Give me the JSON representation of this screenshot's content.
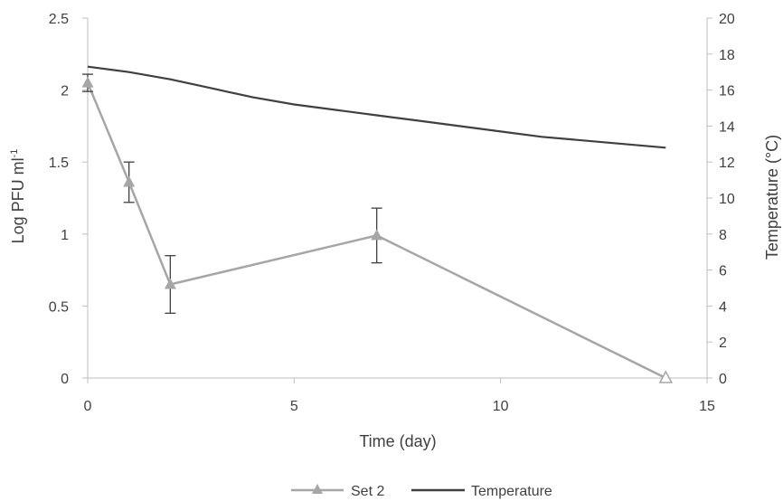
{
  "chart_data": {
    "type": "line",
    "title": "",
    "xlabel": "Time (day)",
    "ylabel": "Log PFU ml",
    "ylabel_superscript": "-1",
    "y2label": "Temperature (°C)",
    "xlim": [
      0,
      15
    ],
    "ylim": [
      0,
      2.5
    ],
    "y2lim": [
      0,
      20
    ],
    "x_ticks": [
      0,
      5,
      10,
      15
    ],
    "y_ticks": [
      0,
      0.5,
      1,
      1.5,
      2,
      2.5
    ],
    "y_tick_labels": [
      "0",
      "0.5",
      "1",
      "1.5",
      "2",
      "2.5"
    ],
    "y2_ticks": [
      0,
      2,
      4,
      6,
      8,
      10,
      12,
      14,
      16,
      18,
      20
    ],
    "grid": false,
    "legend_position": "bottom",
    "series": [
      {
        "name": "Set 2",
        "axis": "left",
        "color": "#a6a6a6",
        "marker": "triangle",
        "x": [
          0,
          1,
          2,
          7,
          14
        ],
        "y": [
          2.05,
          1.36,
          0.65,
          0.99,
          0
        ],
        "error": [
          0.06,
          0.14,
          0.2,
          0.19,
          null
        ],
        "open_marker_index": 4
      },
      {
        "name": "Temperature",
        "axis": "right",
        "color": "#404040",
        "marker": "none",
        "x": [
          0,
          1,
          2,
          3,
          4,
          5,
          6,
          7,
          8,
          9,
          10,
          11,
          12,
          13,
          14
        ],
        "y": [
          17.3,
          17.0,
          16.6,
          16.1,
          15.6,
          15.2,
          14.9,
          14.6,
          14.3,
          14.0,
          13.7,
          13.4,
          13.2,
          13.0,
          12.8
        ]
      }
    ]
  }
}
